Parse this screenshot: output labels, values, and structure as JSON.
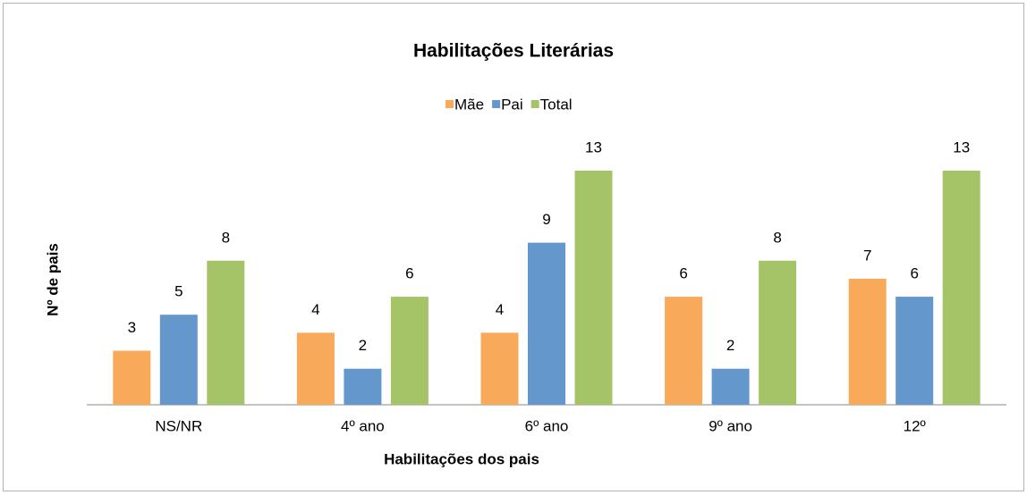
{
  "chart_data": {
    "type": "bar",
    "title": "Habilitações Literárias",
    "x_label": "Habilitações dos pais",
    "y_label": "Nº de pais",
    "categories": [
      "NS/NR",
      "4º ano",
      "6º ano",
      "9º ano",
      "12º"
    ],
    "series": [
      {
        "name": "Mãe",
        "color": "#f8a95a",
        "values": [
          3,
          4,
          4,
          6,
          7
        ]
      },
      {
        "name": "Pai",
        "color": "#6497cb",
        "values": [
          5,
          2,
          9,
          2,
          6
        ]
      },
      {
        "name": "Total",
        "color": "#a5c468",
        "values": [
          8,
          6,
          13,
          8,
          13
        ]
      }
    ],
    "legend": "top"
  }
}
